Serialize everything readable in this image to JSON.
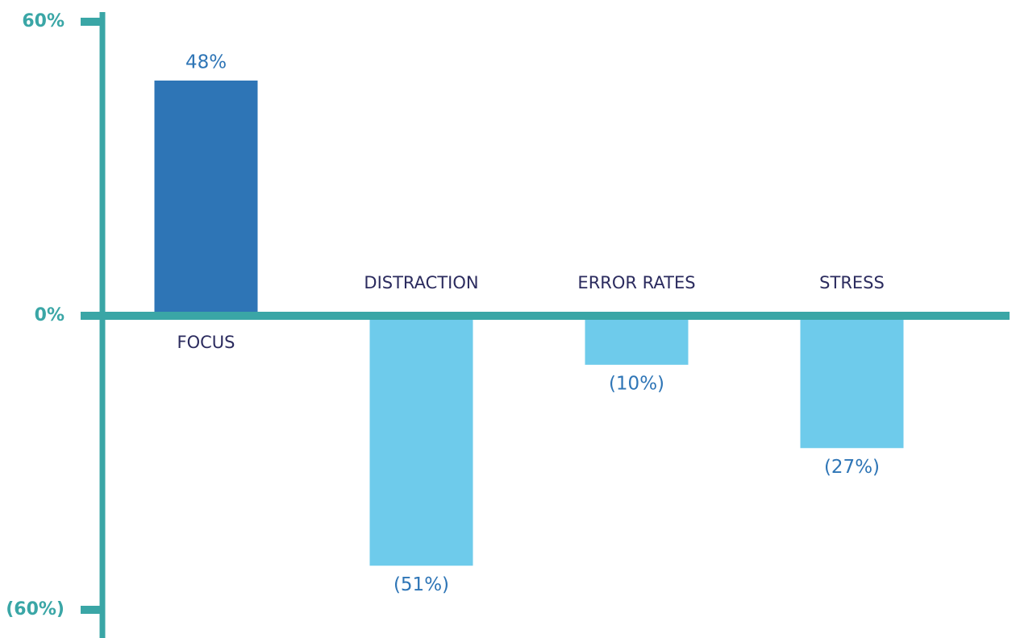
{
  "chart_data": {
    "type": "bar",
    "categories": [
      "FOCUS",
      "DISTRACTION",
      "ERROR RATES",
      "STRESS"
    ],
    "values": [
      48,
      -51,
      -10,
      -27
    ],
    "value_labels": [
      "48%",
      "(51%)",
      "(10%)",
      "(27%)"
    ],
    "colors": [
      "#2e75b6",
      "#6ecbeb",
      "#6ecbeb",
      "#6ecbeb"
    ],
    "axis_color": "#3aa6a6",
    "ylim": [
      -60,
      60
    ],
    "yticks": [
      {
        "value": 60,
        "label": "60%"
      },
      {
        "value": 0,
        "label": "0%"
      },
      {
        "value": -60,
        "label": "(60%)"
      }
    ],
    "grid": false
  }
}
